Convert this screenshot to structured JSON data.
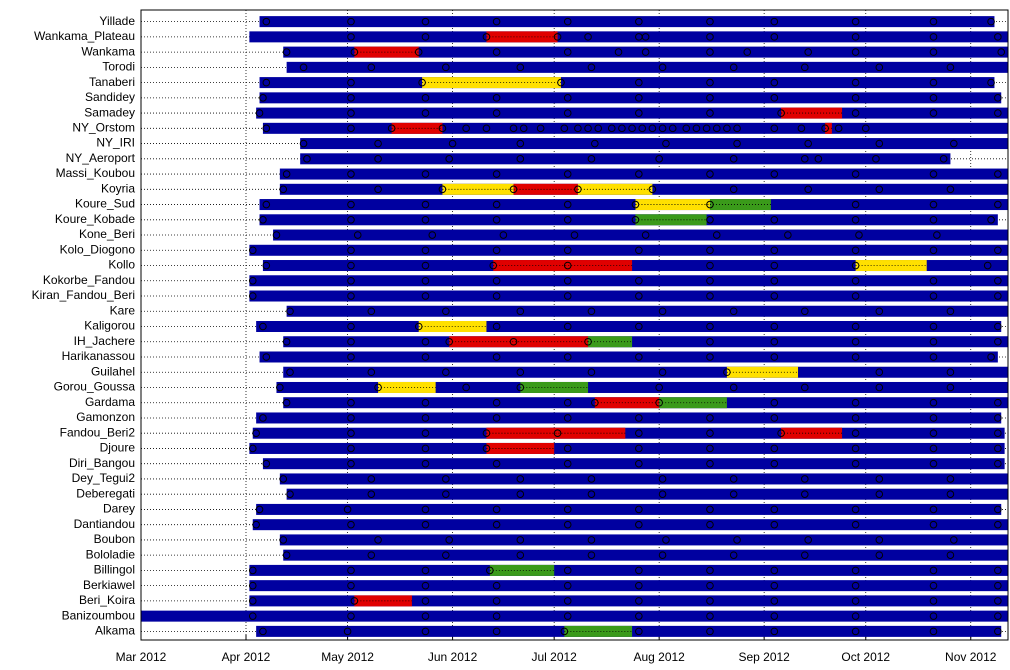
{
  "chart_data": {
    "type": "timeline",
    "xlim": [
      0,
      256
    ],
    "xticks": [
      {
        "value": 0,
        "label": "Mar 2012"
      },
      {
        "value": 31,
        "label": "Apr 2012"
      },
      {
        "value": 61,
        "label": "May 2012"
      },
      {
        "value": 92,
        "label": "Jun 2012"
      },
      {
        "value": 122,
        "label": "Jul 2012"
      },
      {
        "value": 153,
        "label": "Aug 2012"
      },
      {
        "value": 184,
        "label": "Sep 2012"
      },
      {
        "value": 214,
        "label": "Oct 2012"
      },
      {
        "value": 245,
        "label": "Nov 2012"
      }
    ],
    "grid": true,
    "bar_color": "#0000a0",
    "rows": [
      {
        "name": "Yillade",
        "start": 35,
        "end": 252,
        "segments": [],
        "visits": [
          37,
          62,
          84,
          105,
          126,
          147,
          168,
          187,
          211,
          234,
          251
        ]
      },
      {
        "name": "Wankama_Plateau",
        "start": 32,
        "end": 256,
        "segments": [
          {
            "start": 102,
            "end": 123,
            "color": "#e00000"
          }
        ],
        "visits": [
          62,
          84,
          102,
          123,
          132,
          147,
          149,
          168,
          187,
          211,
          234,
          253
        ]
      },
      {
        "name": "Wankama",
        "start": 42,
        "end": 256,
        "segments": [
          {
            "start": 63,
            "end": 82,
            "color": "#e00000"
          }
        ],
        "visits": [
          43,
          63,
          82,
          105,
          126,
          141,
          149,
          168,
          179,
          197,
          211,
          234,
          254
        ]
      },
      {
        "name": "Torodi",
        "start": 43,
        "end": 256,
        "segments": [],
        "visits": [
          48,
          68,
          90,
          112,
          133,
          154,
          175,
          196,
          218,
          239
        ]
      },
      {
        "name": "Tanaberi",
        "start": 35,
        "end": 252,
        "segments": [
          {
            "start": 83,
            "end": 124,
            "color": "#ffe000"
          }
        ],
        "visits": [
          37,
          62,
          83,
          124,
          147,
          168,
          187,
          211,
          234,
          251
        ]
      },
      {
        "name": "Sandidey",
        "start": 35,
        "end": 254,
        "segments": [],
        "visits": [
          36,
          62,
          84,
          105,
          126,
          147,
          168,
          187,
          211,
          234,
          253
        ]
      },
      {
        "name": "Samadey",
        "start": 34,
        "end": 256,
        "segments": [
          {
            "start": 189,
            "end": 207,
            "color": "#e00000"
          }
        ],
        "visits": [
          35,
          62,
          84,
          105,
          126,
          147,
          168,
          189,
          211,
          234,
          253
        ]
      },
      {
        "name": "NY_Orstom",
        "start": 36,
        "end": 256,
        "segments": [
          {
            "start": 74,
            "end": 89,
            "color": "#e00000"
          },
          {
            "start": 202,
            "end": 204,
            "color": "#e00000"
          }
        ],
        "visits": [
          37,
          62,
          74,
          89,
          96,
          102,
          110,
          113,
          118,
          125,
          129,
          132,
          135,
          139,
          142,
          145,
          148,
          151,
          154,
          157,
          161,
          164,
          167,
          170,
          173,
          176,
          187,
          195,
          202,
          206,
          214
        ]
      },
      {
        "name": "NY_IRI",
        "start": 47,
        "end": 256,
        "segments": [],
        "visits": [
          48,
          70,
          92,
          112,
          134,
          155,
          176,
          197,
          218,
          240
        ]
      },
      {
        "name": "NY_Aeroport",
        "start": 47,
        "end": 239,
        "segments": [],
        "visits": [
          49,
          70,
          91,
          112,
          133,
          153,
          175,
          196,
          200,
          217,
          237
        ]
      },
      {
        "name": "Massi_Koubou",
        "start": 41,
        "end": 256,
        "segments": [],
        "visits": [
          43,
          62,
          84,
          105,
          126,
          147,
          168,
          187,
          211,
          234,
          253
        ]
      },
      {
        "name": "Koyria",
        "start": 41,
        "end": 256,
        "segments": [
          {
            "start": 89,
            "end": 110,
            "color": "#ffe000"
          },
          {
            "start": 110,
            "end": 129,
            "color": "#e00000"
          },
          {
            "start": 129,
            "end": 151,
            "color": "#ffe000"
          }
        ],
        "visits": [
          42,
          70,
          89,
          110,
          129,
          151,
          175,
          197,
          218,
          239
        ]
      },
      {
        "name": "Koure_Sud",
        "start": 35,
        "end": 256,
        "segments": [
          {
            "start": 146,
            "end": 168,
            "color": "#ffe000"
          },
          {
            "start": 168,
            "end": 186,
            "color": "#3a9a1a"
          }
        ],
        "visits": [
          37,
          62,
          84,
          105,
          126,
          146,
          168,
          211,
          234,
          253
        ]
      },
      {
        "name": "Koure_Kobade",
        "start": 35,
        "end": 253,
        "segments": [
          {
            "start": 146,
            "end": 167,
            "color": "#3a9a1a"
          }
        ],
        "visits": [
          36,
          62,
          84,
          105,
          126,
          146,
          168,
          187,
          211,
          234,
          251
        ]
      },
      {
        "name": "Kone_Beri",
        "start": 39,
        "end": 256,
        "segments": [],
        "visits": [
          40,
          64,
          86,
          107,
          128,
          149,
          170,
          191,
          212,
          235
        ]
      },
      {
        "name": "Kolo_Diogono",
        "start": 32,
        "end": 256,
        "segments": [],
        "visits": [
          33,
          62,
          84,
          105,
          126,
          147,
          168,
          187,
          211,
          234,
          253
        ]
      },
      {
        "name": "Kollo",
        "start": 36,
        "end": 256,
        "segments": [
          {
            "start": 104,
            "end": 145,
            "color": "#e00000"
          },
          {
            "start": 211,
            "end": 232,
            "color": "#ffe000"
          }
        ],
        "visits": [
          37,
          62,
          84,
          104,
          126,
          168,
          187,
          211,
          250
        ]
      },
      {
        "name": "Kokorbe_Fandou",
        "start": 32,
        "end": 256,
        "segments": [],
        "visits": [
          33,
          62,
          84,
          105,
          126,
          147,
          168,
          187,
          211,
          234,
          253
        ]
      },
      {
        "name": "Kiran_Fandou_Beri",
        "start": 32,
        "end": 256,
        "segments": [],
        "visits": [
          33,
          62,
          84,
          105,
          126,
          147,
          168,
          187,
          211,
          234,
          253
        ]
      },
      {
        "name": "Kare",
        "start": 43,
        "end": 256,
        "segments": [],
        "visits": [
          44,
          68,
          90,
          112,
          133,
          154,
          175,
          196,
          218,
          239
        ]
      },
      {
        "name": "Kaligorou",
        "start": 34,
        "end": 254,
        "segments": [
          {
            "start": 82,
            "end": 102,
            "color": "#ffe000"
          }
        ],
        "visits": [
          36,
          62,
          82,
          105,
          126,
          147,
          168,
          187,
          211,
          234,
          253
        ]
      },
      {
        "name": "IH_Jachere",
        "start": 42,
        "end": 256,
        "segments": [
          {
            "start": 91,
            "end": 132,
            "color": "#e00000"
          },
          {
            "start": 132,
            "end": 145,
            "color": "#3a9a1a"
          }
        ],
        "visits": [
          43,
          62,
          84,
          91,
          110,
          132,
          168,
          187,
          211,
          234,
          253
        ]
      },
      {
        "name": "Harikanassou",
        "start": 35,
        "end": 253,
        "segments": [],
        "visits": [
          37,
          62,
          84,
          105,
          126,
          147,
          168,
          187,
          211,
          234,
          251
        ]
      },
      {
        "name": "Guilahel",
        "start": 42,
        "end": 256,
        "segments": [
          {
            "start": 173,
            "end": 194,
            "color": "#ffe000"
          }
        ],
        "visits": [
          44,
          68,
          90,
          112,
          133,
          154,
          173,
          218,
          239
        ]
      },
      {
        "name": "Gorou_Goussa",
        "start": 40,
        "end": 256,
        "segments": [
          {
            "start": 70,
            "end": 87,
            "color": "#ffe000"
          },
          {
            "start": 112,
            "end": 132,
            "color": "#3a9a1a"
          }
        ],
        "visits": [
          41,
          70,
          96,
          112,
          153,
          175,
          196,
          218,
          239
        ]
      },
      {
        "name": "Gardama",
        "start": 42,
        "end": 256,
        "segments": [
          {
            "start": 134,
            "end": 153,
            "color": "#e00000"
          },
          {
            "start": 153,
            "end": 173,
            "color": "#3a9a1a"
          }
        ],
        "visits": [
          43,
          62,
          84,
          105,
          126,
          134,
          153,
          187,
          211,
          234,
          253
        ]
      },
      {
        "name": "Gamonzon",
        "start": 34,
        "end": 254,
        "segments": [],
        "visits": [
          36,
          62,
          84,
          105,
          126,
          147,
          168,
          187,
          211,
          234,
          253
        ]
      },
      {
        "name": "Fandou_Beri2",
        "start": 33,
        "end": 255,
        "segments": [
          {
            "start": 102,
            "end": 143,
            "color": "#e00000"
          },
          {
            "start": 189,
            "end": 207,
            "color": "#e00000"
          }
        ],
        "visits": [
          34,
          62,
          84,
          102,
          123,
          147,
          168,
          189,
          211,
          234,
          253
        ]
      },
      {
        "name": "Djoure",
        "start": 32,
        "end": 255,
        "segments": [
          {
            "start": 102,
            "end": 122,
            "color": "#e00000"
          }
        ],
        "visits": [
          33,
          62,
          84,
          102,
          126,
          147,
          168,
          187,
          211,
          234,
          253
        ]
      },
      {
        "name": "Diri_Bangou",
        "start": 36,
        "end": 255,
        "segments": [],
        "visits": [
          37,
          62,
          84,
          105,
          126,
          147,
          168,
          187,
          211,
          234,
          253
        ]
      },
      {
        "name": "Dey_Tegui2",
        "start": 41,
        "end": 256,
        "segments": [],
        "visits": [
          42,
          68,
          90,
          112,
          133,
          154,
          175,
          196,
          218,
          239
        ]
      },
      {
        "name": "Deberegati",
        "start": 43,
        "end": 256,
        "segments": [],
        "visits": [
          44,
          68,
          90,
          112,
          133,
          154,
          175,
          196,
          218,
          239
        ]
      },
      {
        "name": "Darey",
        "start": 34,
        "end": 254,
        "segments": [],
        "visits": [
          35,
          61,
          84,
          105,
          126,
          147,
          168,
          187,
          211,
          234,
          253
        ]
      },
      {
        "name": "Dantiandou",
        "start": 33,
        "end": 256,
        "segments": [],
        "visits": [
          34,
          62,
          84,
          105,
          126,
          147,
          168,
          187,
          211,
          234,
          253
        ]
      },
      {
        "name": "Boubon",
        "start": 41,
        "end": 256,
        "segments": [],
        "visits": [
          42,
          70,
          91,
          112,
          133,
          155,
          176,
          197,
          218,
          240
        ]
      },
      {
        "name": "Bololadie",
        "start": 42,
        "end": 256,
        "segments": [],
        "visits": [
          43,
          68,
          90,
          112,
          133,
          154,
          175,
          196,
          218,
          239
        ]
      },
      {
        "name": "Billingol",
        "start": 32,
        "end": 256,
        "segments": [
          {
            "start": 103,
            "end": 122,
            "color": "#3a9a1a"
          }
        ],
        "visits": [
          33,
          62,
          84,
          103,
          126,
          147,
          168,
          187,
          211,
          234,
          253
        ]
      },
      {
        "name": "Berkiawel",
        "start": 32,
        "end": 256,
        "segments": [],
        "visits": [
          33,
          62,
          84,
          105,
          126,
          147,
          168,
          187,
          211,
          234,
          253
        ]
      },
      {
        "name": "Beri_Koira",
        "start": 32,
        "end": 256,
        "segments": [
          {
            "start": 63,
            "end": 80,
            "color": "#e00000"
          }
        ],
        "visits": [
          33,
          63,
          84,
          105,
          126,
          147,
          168,
          187,
          211,
          234,
          253
        ]
      },
      {
        "name": "Banizoumbou",
        "start": 0,
        "end": 256,
        "segments": [],
        "visits": [
          33,
          62,
          84,
          105,
          126,
          147,
          168,
          187,
          211,
          234,
          253
        ]
      },
      {
        "name": "Alkama",
        "start": 34,
        "end": 254,
        "segments": [
          {
            "start": 125,
            "end": 145,
            "color": "#3a9a1a"
          }
        ],
        "visits": [
          36,
          61,
          84,
          105,
          125,
          147,
          168,
          187,
          211,
          234,
          253
        ]
      }
    ]
  }
}
